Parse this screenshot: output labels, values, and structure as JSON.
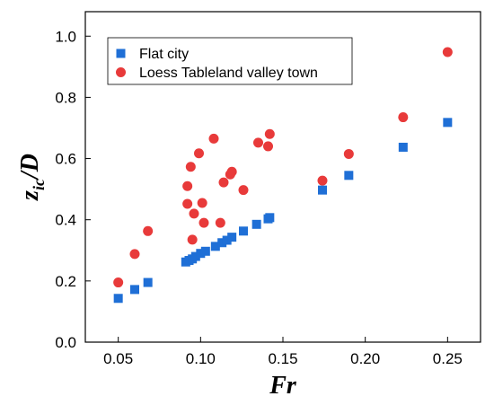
{
  "chart_data": {
    "type": "scatter",
    "title": "",
    "xlabel": "Fr",
    "ylabel_main": "z",
    "ylabel_sub": "ic",
    "ylabel_tail": "/D",
    "xlim": [
      0.03,
      0.27
    ],
    "ylim": [
      0.0,
      1.08
    ],
    "xticks": [
      0.05,
      0.1,
      0.15,
      0.2,
      0.25
    ],
    "xtick_labels": [
      "0.05",
      "0.10",
      "0.15",
      "0.20",
      "0.25"
    ],
    "yticks": [
      0.0,
      0.2,
      0.4,
      0.6,
      0.8,
      1.0
    ],
    "ytick_labels": [
      "0.0",
      "0.2",
      "0.4",
      "0.6",
      "0.8",
      "1.0"
    ],
    "grid": false,
    "legend_position": "top-left",
    "series": [
      {
        "name": "Flat city",
        "marker": "square",
        "color": "#1f6fd6",
        "points": [
          [
            0.05,
            0.143
          ],
          [
            0.06,
            0.172
          ],
          [
            0.068,
            0.195
          ],
          [
            0.091,
            0.262
          ],
          [
            0.093,
            0.267
          ],
          [
            0.095,
            0.272
          ],
          [
            0.097,
            0.28
          ],
          [
            0.1,
            0.29
          ],
          [
            0.103,
            0.297
          ],
          [
            0.109,
            0.313
          ],
          [
            0.113,
            0.325
          ],
          [
            0.116,
            0.333
          ],
          [
            0.119,
            0.343
          ],
          [
            0.126,
            0.363
          ],
          [
            0.134,
            0.385
          ],
          [
            0.141,
            0.403
          ],
          [
            0.142,
            0.407
          ],
          [
            0.174,
            0.497
          ],
          [
            0.19,
            0.545
          ],
          [
            0.223,
            0.637
          ],
          [
            0.25,
            0.718
          ]
        ]
      },
      {
        "name": "Loess Tableland valley town",
        "marker": "circle",
        "color": "#e83a3a",
        "points": [
          [
            0.05,
            0.195
          ],
          [
            0.06,
            0.288
          ],
          [
            0.068,
            0.363
          ],
          [
            0.092,
            0.51
          ],
          [
            0.092,
            0.452
          ],
          [
            0.094,
            0.573
          ],
          [
            0.095,
            0.335
          ],
          [
            0.096,
            0.42
          ],
          [
            0.099,
            0.617
          ],
          [
            0.101,
            0.455
          ],
          [
            0.102,
            0.39
          ],
          [
            0.108,
            0.665
          ],
          [
            0.112,
            0.39
          ],
          [
            0.114,
            0.522
          ],
          [
            0.118,
            0.548
          ],
          [
            0.119,
            0.557
          ],
          [
            0.126,
            0.497
          ],
          [
            0.135,
            0.652
          ],
          [
            0.141,
            0.64
          ],
          [
            0.142,
            0.68
          ],
          [
            0.174,
            0.528
          ],
          [
            0.19,
            0.615
          ],
          [
            0.223,
            0.735
          ],
          [
            0.25,
            0.948
          ]
        ]
      }
    ]
  }
}
